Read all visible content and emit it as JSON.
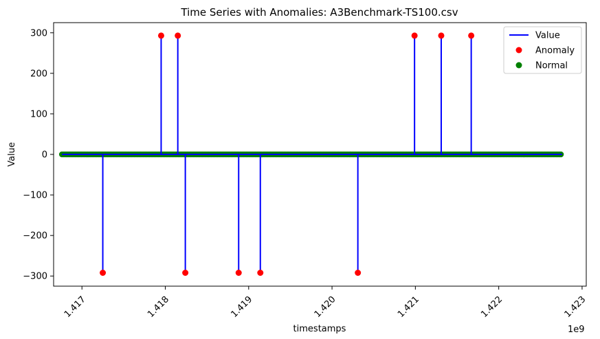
{
  "chart_data": {
    "type": "line",
    "title": "Time Series with Anomalies: A3Benchmark-TS100.csv",
    "xlabel": "timestamps",
    "ylabel": "Value",
    "x_offset_label": "1e9",
    "xlim": [
      1.41666,
      1.42305
    ],
    "ylim": [
      -325,
      325
    ],
    "x_ticks": [
      1.417,
      1.418,
      1.419,
      1.42,
      1.421,
      1.422,
      1.423
    ],
    "x_tick_labels": [
      "1.417",
      "1.418",
      "1.419",
      "1.420",
      "1.421",
      "1.422",
      "1.423"
    ],
    "y_ticks": [
      -300,
      -200,
      -100,
      0,
      100,
      200,
      300
    ],
    "y_tick_labels": [
      "−300",
      "−200",
      "−100",
      "0",
      "100",
      "200",
      "300"
    ],
    "x_range": [
      1.41676,
      1.42276
    ],
    "baseline_value": 0,
    "anomalies": [
      {
        "x": 1.41725,
        "y": -292
      },
      {
        "x": 1.41795,
        "y": 293
      },
      {
        "x": 1.41815,
        "y": 293
      },
      {
        "x": 1.41824,
        "y": -292
      },
      {
        "x": 1.41888,
        "y": -292
      },
      {
        "x": 1.41914,
        "y": -292
      },
      {
        "x": 1.42031,
        "y": -292
      },
      {
        "x": 1.42099,
        "y": 293
      },
      {
        "x": 1.42131,
        "y": 293
      },
      {
        "x": 1.42167,
        "y": 293
      }
    ],
    "legend": {
      "position": "top-right",
      "entries": [
        {
          "label": "Value",
          "kind": "line",
          "color": "#0000ff"
        },
        {
          "label": "Anomaly",
          "kind": "marker",
          "color": "#ff0000"
        },
        {
          "label": "Normal",
          "kind": "marker",
          "color": "#008000"
        }
      ]
    },
    "colors": {
      "line": "#0000ff",
      "anomaly": "#ff0000",
      "normal": "#008000"
    },
    "grid": false
  }
}
